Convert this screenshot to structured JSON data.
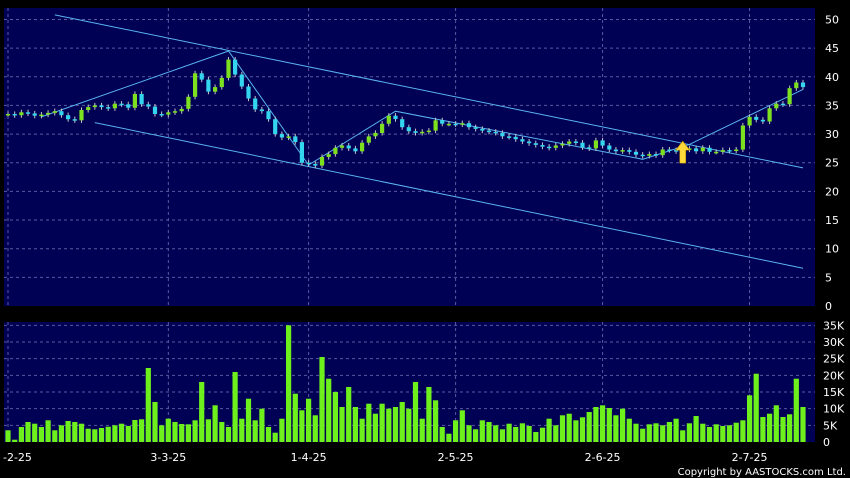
{
  "chart_data": [
    {
      "type": "candlestick",
      "title": "",
      "xlabel": "",
      "ylabel": "",
      "ylim": [
        0,
        52
      ],
      "yticks": [
        "0",
        "5",
        "10",
        "15",
        "20",
        "25",
        "30",
        "35",
        "40",
        "45",
        "50"
      ],
      "xticks": [
        "-2-25",
        "3-3-25",
        "1-4-25",
        "2-5-25",
        "2-6-25",
        "2-7-25"
      ],
      "grid": true,
      "colors": {
        "up": "#7de01e",
        "down": "#33d6ee",
        "line": "#5ab4f0",
        "background": "#000055",
        "grid": "#5a5aa0"
      },
      "close": [
        33.5,
        33.3,
        33.8,
        33.6,
        33.2,
        33.4,
        33.7,
        34.0,
        33.3,
        32.6,
        32.4,
        34.2,
        34.7,
        35.0,
        34.7,
        34.5,
        35.3,
        35.2,
        34.6,
        37.0,
        35.2,
        34.8,
        33.5,
        33.4,
        33.8,
        34.0,
        34.4,
        36.5,
        40.6,
        39.5,
        37.4,
        38.2,
        39.8,
        43.0,
        40.4,
        38.3,
        36.2,
        34.3,
        34.0,
        32.6,
        30.0,
        29.4,
        29.6,
        28.6,
        25.0,
        24.8,
        24.5,
        26.0,
        26.5,
        27.6,
        28.0,
        27.5,
        27.0,
        28.5,
        29.6,
        30.2,
        31.8,
        33.2,
        32.6,
        31.2,
        30.5,
        30.2,
        30.4,
        30.6,
        32.4,
        31.8,
        31.8,
        31.7,
        31.9,
        31.2,
        30.9,
        30.6,
        30.4,
        30.2,
        29.6,
        29.5,
        29.1,
        28.7,
        28.4,
        28.1,
        27.8,
        27.6,
        28.0,
        28.3,
        28.7,
        28.5,
        27.7,
        27.5,
        28.9,
        28.0,
        27.3,
        27.0,
        27.2,
        26.9,
        26.4,
        26.2,
        26.5,
        26.3,
        27.3,
        27.2,
        27.0,
        27.3,
        27.5,
        27.0,
        27.6,
        26.9,
        26.9,
        27.2,
        27.1,
        27.3,
        31.5,
        33.0,
        32.5,
        32.2,
        34.5,
        35.3,
        35.2,
        38.0,
        39.0,
        38.2
      ],
      "volume": [
        3500,
        700,
        4500,
        6000,
        5500,
        4500,
        6500,
        3500,
        5000,
        6300,
        6000,
        5500,
        4000,
        3800,
        4200,
        4600,
        5000,
        5500,
        4800,
        6600,
        6800,
        22200,
        12000,
        5000,
        7000,
        6000,
        5400,
        5300,
        6500,
        18000,
        6800,
        11000,
        6000,
        4500,
        21000,
        7000,
        13000,
        6500,
        10000,
        4500,
        2800,
        7000,
        35000,
        14500,
        9500,
        13000,
        8000,
        25500,
        19000,
        15000,
        10500,
        16500,
        10500,
        7000,
        11500,
        8500,
        11500,
        10000,
        10500,
        12000,
        10000,
        18000,
        7000,
        16500,
        12500,
        4500,
        2500,
        6500,
        9500,
        5000,
        3800,
        6500,
        6000,
        5000,
        3800,
        5500,
        4500,
        5600,
        4800,
        3000,
        4300,
        7000,
        5000,
        8000,
        8500,
        6500,
        7400,
        9000,
        10500,
        11000,
        10200,
        8000,
        10000,
        7000,
        5500,
        4000,
        5300,
        5600,
        5000,
        6000,
        7000,
        3500,
        5600,
        7800,
        5500,
        4500,
        5300,
        4800,
        5000,
        5800,
        6500,
        14000,
        20500,
        7500,
        8500,
        11000,
        7500,
        8300,
        19000,
        10500
      ],
      "volume_ylim": [
        0,
        36000
      ],
      "volume_yticks": [
        "0",
        "5K",
        "10K",
        "15K",
        "20K",
        "25K",
        "30K",
        "35K"
      ],
      "trendlines": [
        {
          "name": "channel-top",
          "x": [
            7,
            119
          ],
          "y": [
            50.8,
            24.1
          ]
        },
        {
          "name": "channel-bottom",
          "x": [
            13,
            119
          ],
          "y": [
            32.0,
            6.6
          ]
        },
        {
          "name": "zigzag",
          "x": [
            5,
            33,
            45,
            58,
            95,
            102,
            119
          ],
          "y": [
            33.0,
            44.5,
            24.6,
            34.0,
            25.6,
            28.2,
            37.8
          ]
        }
      ],
      "annotations": [
        {
          "type": "arrow-up",
          "x": 101,
          "y": 26.5,
          "color": "#ffd93c"
        }
      ]
    }
  ],
  "copyright": "Copyright by AASTOCKS.com Ltd."
}
